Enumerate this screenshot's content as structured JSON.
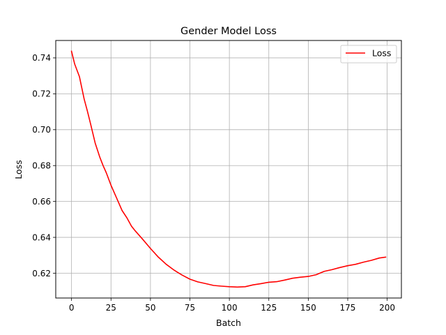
{
  "chart_data": {
    "type": "line",
    "title": "Gender Model Loss",
    "xlabel": "Batch",
    "ylabel": "Loss",
    "xlim": [
      -10,
      209
    ],
    "ylim": [
      0.6062,
      0.7497
    ],
    "xticks": [
      0,
      25,
      50,
      75,
      100,
      125,
      150,
      175,
      200
    ],
    "yticks": [
      0.62,
      0.64,
      0.66,
      0.68,
      0.7,
      0.72,
      0.74
    ],
    "grid": true,
    "legend_position": "top-right",
    "series": [
      {
        "name": "Loss",
        "color": "#ff0000",
        "x": [
          0,
          2,
          5,
          8,
          10,
          12,
          15,
          18,
          20,
          22,
          25,
          28,
          30,
          32,
          35,
          38,
          40,
          45,
          50,
          55,
          60,
          65,
          70,
          75,
          80,
          85,
          90,
          95,
          100,
          105,
          110,
          115,
          120,
          125,
          130,
          135,
          140,
          145,
          150,
          155,
          160,
          165,
          170,
          175,
          180,
          185,
          190,
          195,
          199
        ],
        "y": [
          0.7437,
          0.7365,
          0.7295,
          0.717,
          0.7105,
          0.7035,
          0.6925,
          0.6845,
          0.68,
          0.676,
          0.669,
          0.663,
          0.659,
          0.655,
          0.651,
          0.6462,
          0.644,
          0.639,
          0.6338,
          0.629,
          0.625,
          0.6217,
          0.619,
          0.6167,
          0.6152,
          0.6142,
          0.6132,
          0.6128,
          0.6125,
          0.6123,
          0.6125,
          0.6135,
          0.6142,
          0.615,
          0.6153,
          0.6162,
          0.6172,
          0.6178,
          0.6182,
          0.6192,
          0.621,
          0.622,
          0.6232,
          0.6242,
          0.625,
          0.6262,
          0.6272,
          0.6285,
          0.629
        ]
      }
    ]
  }
}
